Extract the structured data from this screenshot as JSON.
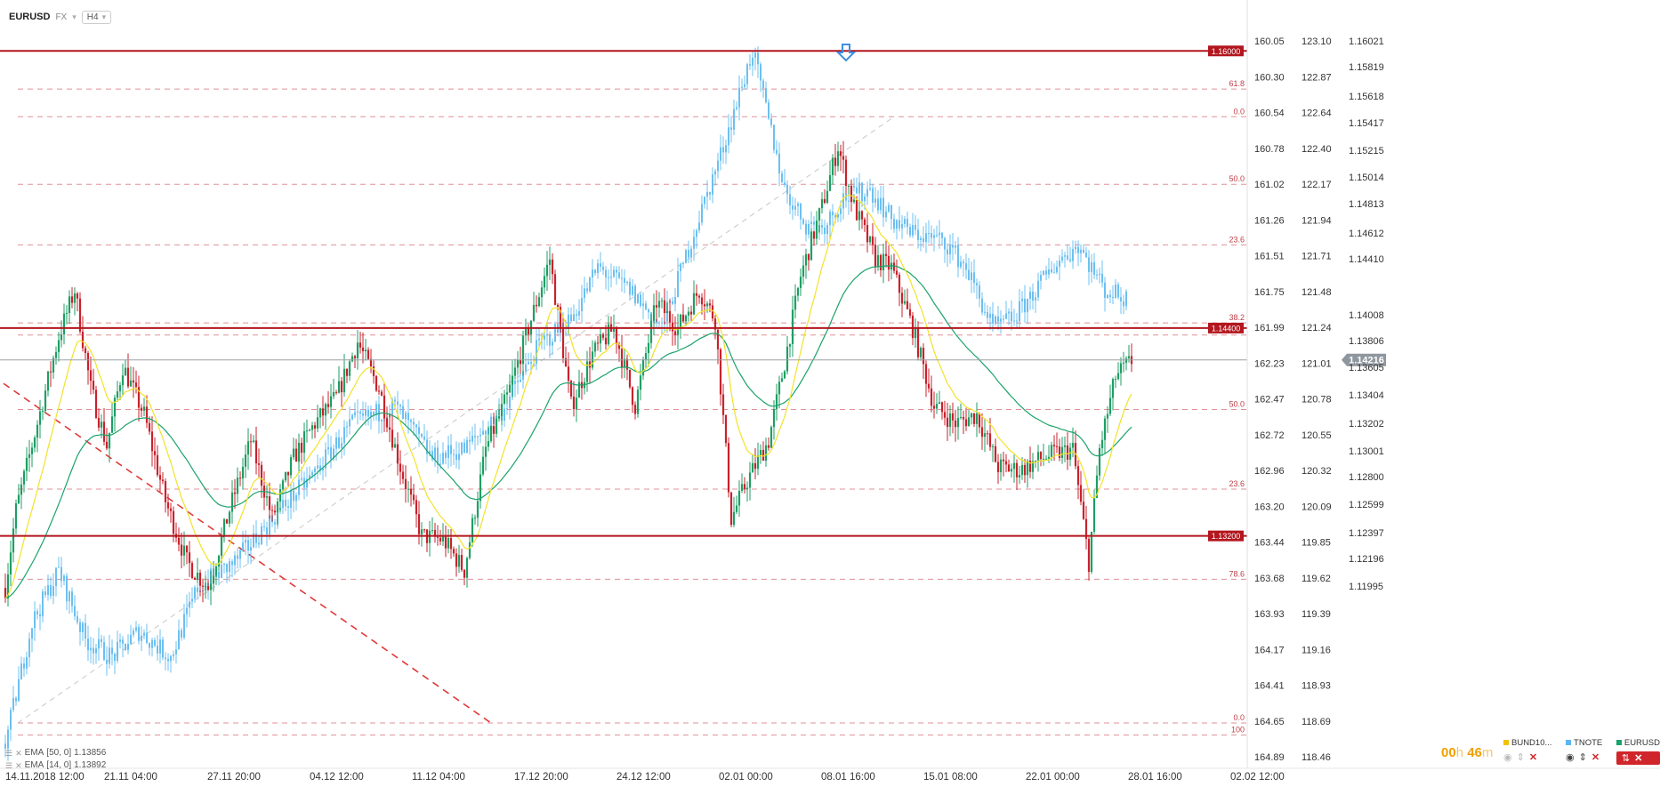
{
  "toolbar": {
    "symbol": "EURUSD",
    "market": "FX",
    "timeframe": "H4"
  },
  "indicators": [
    {
      "label": "EMA",
      "params": "[50, 0]",
      "value": "1.13856",
      "color": "#1aa36a"
    },
    {
      "label": "EMA",
      "params": "[14, 0]",
      "value": "1.13892",
      "color": "#f2e22a"
    }
  ],
  "countdown": {
    "hours": "00",
    "h": "h",
    "minutes": "46",
    "m": "m"
  },
  "legend": [
    {
      "name": "BUND10...",
      "color": "#f2c200"
    },
    {
      "name": "TNOTE",
      "color": "#5bb6f0"
    },
    {
      "name": "EURUSD",
      "color": "#1aa36a"
    }
  ],
  "colors": {
    "bull": "#1f9e64",
    "bear": "#c8222c",
    "second": "#6cc0f0",
    "level": "#b3161e",
    "ema50": "#1aa36a",
    "ema14": "#f2e22a"
  },
  "chart_data": {
    "type": "candlestick",
    "instrument": "EURUSD",
    "timeframe": "H4",
    "price_range": [
      1.1193,
      1.1614
    ],
    "x_ticks": [
      "14.11.2018  12:00",
      "21.11  04:00",
      "27.11  20:00",
      "04.12  12:00",
      "11.12  04:00",
      "17.12  20:00",
      "24.12  12:00",
      "02.01  00:00",
      "08.01  16:00",
      "15.01  08:00",
      "22.01  00:00",
      "28.01  16:00",
      "02.02  12:00"
    ],
    "axis_eurusd": [
      "1.16021",
      "1.15819",
      "1.15618",
      "1.15417",
      "1.15215",
      "1.15014",
      "1.14813",
      "1.14612",
      "1.14410",
      "1.14008",
      "1.13806",
      "1.13605",
      "1.13404",
      "1.13202",
      "1.13001",
      "1.12800",
      "1.12599",
      "1.12397",
      "1.12196",
      "1.11995"
    ],
    "axis_tnote": [
      "123.10",
      "122.87",
      "122.64",
      "122.40",
      "122.17",
      "121.94",
      "121.71",
      "121.48",
      "121.24",
      "121.01",
      "120.78",
      "120.55",
      "120.32",
      "120.09",
      "119.85",
      "119.62",
      "119.39",
      "119.16",
      "118.93",
      "118.69",
      "118.46"
    ],
    "axis_bund": [
      "160.05",
      "160.30",
      "160.54",
      "160.78",
      "161.02",
      "161.26",
      "161.51",
      "161.75",
      "161.99",
      "162.23",
      "162.47",
      "162.72",
      "162.96",
      "163.20",
      "163.44",
      "163.68",
      "163.93",
      "164.17",
      "164.41",
      "164.65",
      "164.89"
    ],
    "levels": [
      {
        "price": 1.16,
        "label": "1.16000"
      },
      {
        "price": 1.144,
        "label": "1.14400"
      },
      {
        "price": 1.132,
        "label": "1.13200"
      }
    ],
    "current": {
      "price": 1.14216,
      "label": "1.14216"
    },
    "fib_upper": [
      {
        "price": 1.1578,
        "label": "61.8"
      },
      {
        "price": 1.1562,
        "label": "0.0"
      },
      {
        "price": 1.1523,
        "label": "50.0"
      },
      {
        "price": 1.1488,
        "label": "23.6"
      },
      {
        "price": 1.1443,
        "label": "38.2"
      },
      {
        "price": 1.1436,
        "label": ""
      }
    ],
    "fib_lower": [
      {
        "price": 1.1393,
        "label": "50.0"
      },
      {
        "price": 1.1347,
        "label": "23.6"
      },
      {
        "price": 1.1295,
        "label": "78.6"
      },
      {
        "price": 1.1212,
        "label": "0.0"
      },
      {
        "price": 1.1205,
        "label": "100"
      }
    ],
    "eurusd": {
      "anchors": [
        [
          0,
          1.129
        ],
        [
          4,
          1.1335
        ],
        [
          12,
          1.1385
        ],
        [
          20,
          1.1435
        ],
        [
          26,
          1.1462
        ],
        [
          32,
          1.1405
        ],
        [
          38,
          1.1372
        ],
        [
          44,
          1.1418
        ],
        [
          52,
          1.139
        ],
        [
          60,
          1.134
        ],
        [
          68,
          1.1305
        ],
        [
          76,
          1.129
        ],
        [
          84,
          1.1335
        ],
        [
          92,
          1.1375
        ],
        [
          100,
          1.133
        ],
        [
          108,
          1.1365
        ],
        [
          116,
          1.1385
        ],
        [
          124,
          1.14
        ],
        [
          132,
          1.1432
        ],
        [
          140,
          1.1405
        ],
        [
          148,
          1.136
        ],
        [
          156,
          1.132
        ],
        [
          164,
          1.1318
        ],
        [
          172,
          1.13
        ],
        [
          180,
          1.137
        ],
        [
          188,
          1.14
        ],
        [
          196,
          1.144
        ],
        [
          204,
          1.148
        ],
        [
          212,
          1.1395
        ],
        [
          220,
          1.1425
        ],
        [
          228,
          1.144
        ],
        [
          236,
          1.1395
        ],
        [
          244,
          1.1455
        ],
        [
          252,
          1.144
        ],
        [
          260,
          1.1462
        ],
        [
          266,
          1.1445
        ],
        [
          272,
          1.133
        ],
        [
          278,
          1.1352
        ],
        [
          286,
          1.1375
        ],
        [
          292,
          1.142
        ],
        [
          298,
          1.147
        ],
        [
          306,
          1.151
        ],
        [
          312,
          1.1545
        ],
        [
          318,
          1.151
        ],
        [
          326,
          1.148
        ],
        [
          332,
          1.1475
        ],
        [
          340,
          1.144
        ],
        [
          348,
          1.1395
        ],
        [
          356,
          1.1385
        ],
        [
          364,
          1.139
        ],
        [
          372,
          1.136
        ],
        [
          380,
          1.1358
        ],
        [
          390,
          1.1366
        ],
        [
          400,
          1.137
        ],
        [
          406,
          1.1305
        ],
        [
          410,
          1.137
        ],
        [
          416,
          1.1412
        ],
        [
          422,
          1.1421
        ]
      ],
      "n": 423
    },
    "tnote": {
      "anchors": [
        [
          0,
          1.12
        ],
        [
          10,
          1.127
        ],
        [
          20,
          1.13
        ],
        [
          30,
          1.126
        ],
        [
          40,
          1.125
        ],
        [
          50,
          1.1265
        ],
        [
          62,
          1.125
        ],
        [
          72,
          1.129
        ],
        [
          86,
          1.1305
        ],
        [
          100,
          1.133
        ],
        [
          115,
          1.1355
        ],
        [
          130,
          1.1385
        ],
        [
          146,
          1.1395
        ],
        [
          160,
          1.1365
        ],
        [
          172,
          1.137
        ],
        [
          186,
          1.1392
        ],
        [
          200,
          1.143
        ],
        [
          212,
          1.1445
        ],
        [
          222,
          1.1475
        ],
        [
          234,
          1.1462
        ],
        [
          246,
          1.144
        ],
        [
          258,
          1.1495
        ],
        [
          268,
          1.154
        ],
        [
          280,
          1.16
        ],
        [
          286,
          1.156
        ],
        [
          292,
          1.152
        ],
        [
          300,
          1.15
        ],
        [
          306,
          1.1498
        ],
        [
          314,
          1.1515
        ],
        [
          324,
          1.152
        ],
        [
          332,
          1.1503
        ],
        [
          340,
          1.1495
        ],
        [
          352,
          1.149
        ],
        [
          360,
          1.1475
        ],
        [
          370,
          1.144
        ],
        [
          378,
          1.1446
        ],
        [
          386,
          1.1462
        ],
        [
          394,
          1.1478
        ],
        [
          402,
          1.1488
        ],
        [
          412,
          1.1462
        ],
        [
          420,
          1.1457
        ]
      ],
      "start": 0,
      "end": 420
    }
  }
}
